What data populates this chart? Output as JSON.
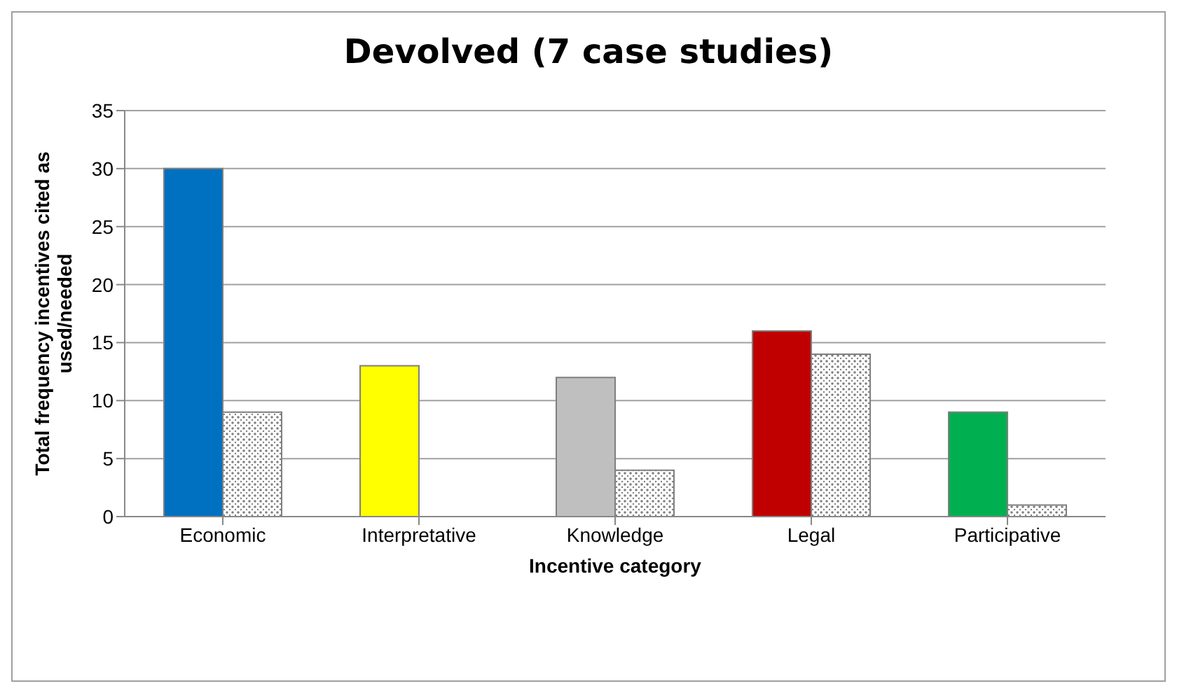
{
  "chart_data": {
    "type": "bar",
    "title": "Devolved (7 case studies)",
    "xlabel": "Incentive category",
    "ylabel": "Total frequency incentives cited as used/needed",
    "categories": [
      "Economic",
      "Interpretative",
      "Knowledge",
      "Legal",
      "Participative"
    ],
    "series": [
      {
        "values": [
          30,
          13,
          12,
          16,
          9
        ],
        "colors": [
          "#0070c0",
          "#ffff00",
          "#bfbfbf",
          "#c00000",
          "#00b050"
        ]
      },
      {
        "values": [
          9,
          0,
          4,
          14,
          1
        ],
        "color": "#7f7f7f"
      }
    ],
    "ylim": [
      0,
      35
    ],
    "yticks": [
      0,
      5,
      10,
      15,
      20,
      25,
      30,
      35
    ],
    "grid": "y",
    "legend": false
  }
}
